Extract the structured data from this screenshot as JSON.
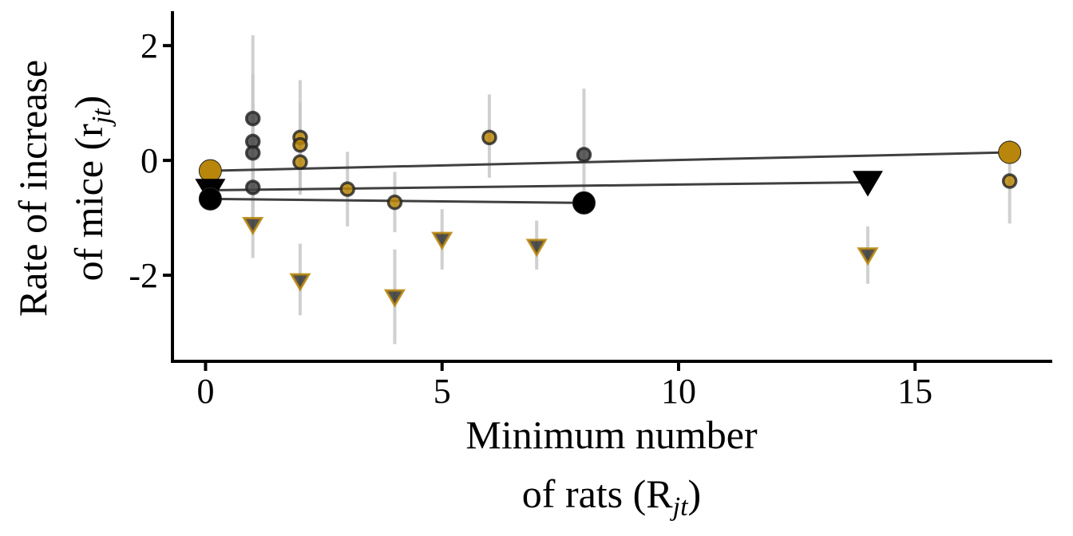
{
  "chart_data": {
    "type": "scatter",
    "xlabel_line1": "Minimum number",
    "xlabel_line2": "of rats (R",
    "xlabel_sub": "jt",
    "xlabel_close": ")",
    "ylabel_line1": "Rate of increase",
    "ylabel_line2": "of mice (r",
    "ylabel_sub": "jt",
    "ylabel_close": ")",
    "xlim": [
      -0.7,
      17.9
    ],
    "ylim": [
      -3.5,
      2.6
    ],
    "x_ticks": [
      0,
      5,
      10,
      15
    ],
    "x_tick_labels": [
      "0",
      "5",
      "10",
      "15"
    ],
    "y_ticks": [
      -2,
      0,
      2
    ],
    "y_tick_labels": [
      "-2",
      "0",
      "2"
    ],
    "grid": false,
    "colors": {
      "gold": "#b8860b",
      "black": "#000000",
      "dark": "#444444",
      "errorbar": "#c8c8c8",
      "line": "#404040"
    },
    "series": [
      {
        "marker": "circle",
        "fill": "gold",
        "points": [
          {
            "x": 2,
            "y": 0.4,
            "lo": -0.55,
            "hi": 1.4
          },
          {
            "x": 2,
            "y": 0.27,
            "lo": -0.5,
            "hi": 1.0
          },
          {
            "x": 2,
            "y": -0.03,
            "lo": -0.6,
            "hi": 0.55
          },
          {
            "x": 3,
            "y": -0.5,
            "lo": -1.15,
            "hi": 0.15
          },
          {
            "x": 4,
            "y": -0.73,
            "lo": -1.25,
            "hi": -0.2
          },
          {
            "x": 6,
            "y": 0.4,
            "lo": -0.3,
            "hi": 1.15
          },
          {
            "x": 17,
            "y": -0.36,
            "lo": -1.1,
            "hi": 0.35
          }
        ]
      },
      {
        "marker": "circle",
        "fill": "dark",
        "points": [
          {
            "x": 1,
            "y": 0.73,
            "lo": -0.85,
            "hi": 2.18
          },
          {
            "x": 1,
            "y": 0.33,
            "lo": -0.6,
            "hi": 1.5
          },
          {
            "x": 1,
            "y": 0.13,
            "lo": -0.5,
            "hi": 1.0
          },
          {
            "x": 1,
            "y": -0.47,
            "lo": -1.0,
            "hi": 0.1
          },
          {
            "x": 8,
            "y": 0.1,
            "lo": -0.85,
            "hi": 1.25
          }
        ]
      },
      {
        "marker": "triangle",
        "fill": "dark",
        "points": [
          {
            "x": 1,
            "y": -1.12,
            "lo": -1.7,
            "hi": -0.55
          },
          {
            "x": 2,
            "y": -2.1,
            "lo": -2.7,
            "hi": -1.45
          },
          {
            "x": 4,
            "y": -2.38,
            "lo": -3.2,
            "hi": -1.55
          },
          {
            "x": 5,
            "y": -1.38,
            "lo": -1.9,
            "hi": -0.85
          },
          {
            "x": 7,
            "y": -1.5,
            "lo": -1.9,
            "hi": -1.05
          },
          {
            "x": 14,
            "y": -1.65,
            "lo": -2.15,
            "hi": -1.15
          }
        ]
      }
    ],
    "lines": [
      {
        "marker": "circle",
        "color": "gold",
        "x": [
          0.1,
          17
        ],
        "y": [
          -0.18,
          0.14
        ]
      },
      {
        "marker": "triangle",
        "color": "black",
        "x": [
          0.1,
          14
        ],
        "y": [
          -0.52,
          -0.38
        ]
      },
      {
        "marker": "circle",
        "color": "black",
        "x": [
          0.1,
          8
        ],
        "y": [
          -0.67,
          -0.74
        ]
      }
    ]
  }
}
